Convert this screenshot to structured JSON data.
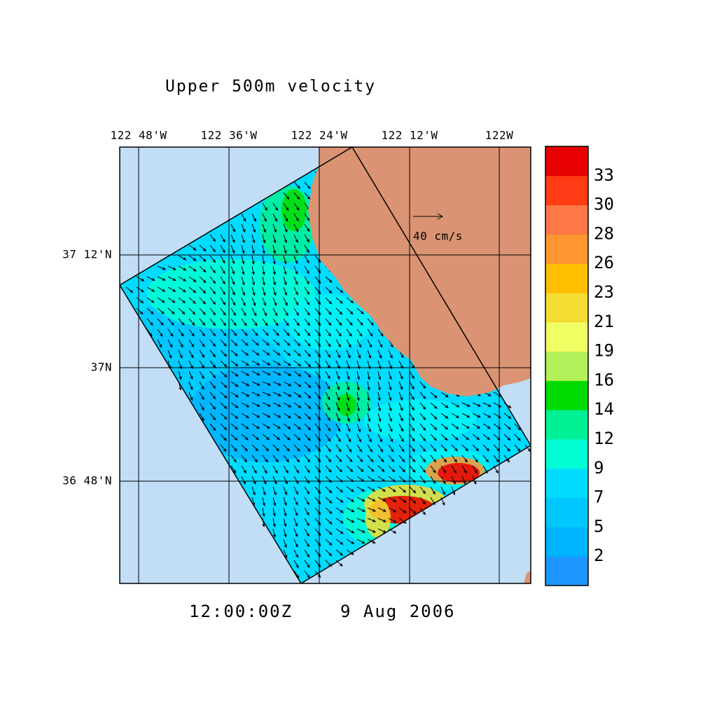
{
  "title": "Upper 500m velocity",
  "time": "12:00:00Z",
  "date": "9 Aug 2006",
  "map": {
    "lon_labels": [
      "122 48'W",
      "122 36'W",
      "122 24'W",
      "122 12'W",
      "122W"
    ],
    "lat_labels": [
      "37 12'N",
      "37N",
      "36 48'N"
    ],
    "reference_vector": "40 cm/s",
    "land_color": "#da9473",
    "water_color": "#c2ddf6"
  },
  "colorbar": {
    "labels": [
      2,
      5,
      7,
      9,
      12,
      14,
      16,
      19,
      21,
      23,
      26,
      28,
      30,
      33
    ],
    "colors": [
      "#1e96ff",
      "#00b4ff",
      "#00c8ff",
      "#00dcff",
      "#00f5f5",
      "#00ffd2",
      "#00f096",
      "#00dc00",
      "#b4f05a",
      "#f0ff64",
      "#f5dc32",
      "#ffbe00",
      "#ff9632",
      "#ff7846",
      "#ff3c14",
      "#e60000"
    ]
  }
}
